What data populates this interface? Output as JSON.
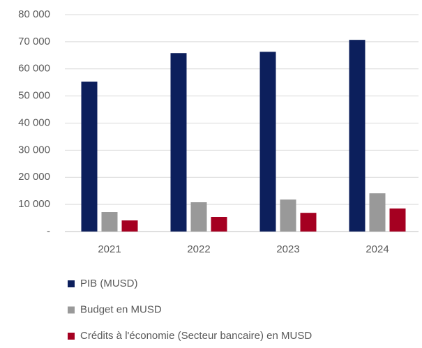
{
  "chart_data": {
    "type": "bar",
    "categories": [
      "2021",
      "2022",
      "2023",
      "2024"
    ],
    "series": [
      {
        "name": "PIB (MUSD)",
        "color": "#0c1f5c",
        "values": [
          55300,
          65800,
          66300,
          70700
        ]
      },
      {
        "name": "Budget en MUSD",
        "color": "#999999",
        "values": [
          7200,
          10800,
          11800,
          14100
        ]
      },
      {
        "name": "Crédits à l'économie (Secteur bancaire) en MUSD",
        "color": "#a50021",
        "values": [
          4100,
          5400,
          6900,
          8500
        ]
      }
    ],
    "ylim": [
      0,
      80000
    ],
    "yticks": [
      {
        "value": 0,
        "label": "-"
      },
      {
        "value": 10000,
        "label": "10 000"
      },
      {
        "value": 20000,
        "label": "20 000"
      },
      {
        "value": 30000,
        "label": "30 000"
      },
      {
        "value": 40000,
        "label": "40 000"
      },
      {
        "value": 50000,
        "label": "50 000"
      },
      {
        "value": 60000,
        "label": "60 000"
      },
      {
        "value": 70000,
        "label": "70 000"
      },
      {
        "value": 80000,
        "label": "80 000"
      }
    ],
    "grid": true,
    "legend": "bottom"
  }
}
